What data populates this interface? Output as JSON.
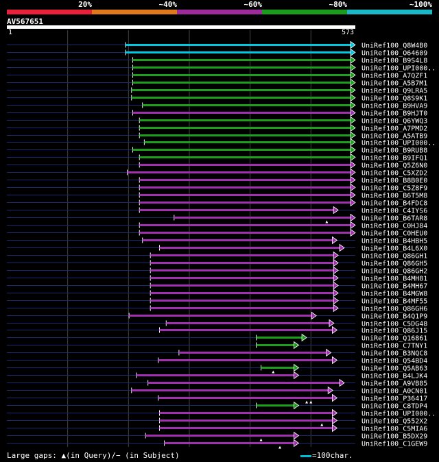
{
  "legend": {
    "labels": [
      "20%",
      "~40%",
      "~60%",
      "~80%",
      "~100%"
    ],
    "colors": [
      "#e8203c",
      "#e0781c",
      "#9c2c9c",
      "#1c9c1c",
      "#1cb8c8"
    ]
  },
  "query": {
    "name": "AV567651",
    "start_label": "1",
    "end_label": "573",
    "length": 573
  },
  "hits": [
    {
      "name": "UniRef100_Q8W4B0",
      "start": 195,
      "end": 573,
      "color": "cyan",
      "gaps": []
    },
    {
      "name": "UniRef100_O64609",
      "start": 195,
      "end": 573,
      "color": "cyan",
      "gaps": []
    },
    {
      "name": "UniRef100_B9S4L8",
      "start": 207,
      "end": 573,
      "color": "green",
      "gaps": []
    },
    {
      "name": "UniRef100_UPI000..",
      "start": 207,
      "end": 573,
      "color": "green",
      "gaps": []
    },
    {
      "name": "UniRef100_A7QZF1",
      "start": 207,
      "end": 573,
      "color": "green",
      "gaps": []
    },
    {
      "name": "UniRef100_A5B7M1",
      "start": 207,
      "end": 573,
      "color": "green",
      "gaps": []
    },
    {
      "name": "UniRef100_Q9LRA5",
      "start": 205,
      "end": 573,
      "color": "green",
      "gaps": []
    },
    {
      "name": "UniRef100_Q8S9K1",
      "start": 205,
      "end": 573,
      "color": "green",
      "gaps": []
    },
    {
      "name": "UniRef100_B9HVA9",
      "start": 223,
      "end": 573,
      "color": "green",
      "gaps": []
    },
    {
      "name": "UniRef100_B9HJT0",
      "start": 207,
      "end": 573,
      "color": "purple",
      "gaps": []
    },
    {
      "name": "UniRef100_Q6YWQ3",
      "start": 218,
      "end": 573,
      "color": "green",
      "gaps": []
    },
    {
      "name": "UniRef100_A7PMD2",
      "start": 218,
      "end": 573,
      "color": "green",
      "gaps": []
    },
    {
      "name": "UniRef100_A5ATB9",
      "start": 218,
      "end": 573,
      "color": "green",
      "gaps": []
    },
    {
      "name": "UniRef100_UPI000..",
      "start": 226,
      "end": 573,
      "color": "green",
      "gaps": []
    },
    {
      "name": "UniRef100_B9RUB8",
      "start": 207,
      "end": 573,
      "color": "green",
      "gaps": []
    },
    {
      "name": "UniRef100_B9IFQ1",
      "start": 218,
      "end": 573,
      "color": "green",
      "gaps": []
    },
    {
      "name": "UniRef100_Q5Z6N0",
      "start": 218,
      "end": 573,
      "color": "purple",
      "gaps": []
    },
    {
      "name": "UniRef100_C5XZD2",
      "start": 198,
      "end": 573,
      "color": "purple",
      "gaps": []
    },
    {
      "name": "UniRef100_B8B0E0",
      "start": 218,
      "end": 573,
      "color": "purple",
      "gaps": []
    },
    {
      "name": "UniRef100_C5Z8F9",
      "start": 218,
      "end": 573,
      "color": "purple",
      "gaps": []
    },
    {
      "name": "UniRef100_B6T5M8",
      "start": 218,
      "end": 573,
      "color": "purple",
      "gaps": []
    },
    {
      "name": "UniRef100_B4FDC8",
      "start": 218,
      "end": 573,
      "color": "purple",
      "gaps": []
    },
    {
      "name": "UniRef100_C4IYS6",
      "start": 218,
      "end": 545,
      "color": "purple",
      "gaps": []
    },
    {
      "name": "UniRef100_B6TAR8",
      "start": 275,
      "end": 573,
      "color": "purple",
      "gaps": [
        526
      ]
    },
    {
      "name": "UniRef100_C0HJ84",
      "start": 218,
      "end": 573,
      "color": "purple",
      "gaps": []
    },
    {
      "name": "UniRef100_C0HEU0",
      "start": 218,
      "end": 573,
      "color": "purple",
      "gaps": []
    },
    {
      "name": "UniRef100_B4HBH5",
      "start": 223,
      "end": 543,
      "color": "purple",
      "gaps": []
    },
    {
      "name": "UniRef100_B4L6X0",
      "start": 251,
      "end": 555,
      "color": "purple",
      "gaps": []
    },
    {
      "name": "UniRef100_Q86GH1",
      "start": 236,
      "end": 545,
      "color": "purple",
      "gaps": []
    },
    {
      "name": "UniRef100_Q86GH5",
      "start": 236,
      "end": 545,
      "color": "purple",
      "gaps": []
    },
    {
      "name": "UniRef100_Q86GH2",
      "start": 236,
      "end": 545,
      "color": "purple",
      "gaps": []
    },
    {
      "name": "UniRef100_B4MH81",
      "start": 236,
      "end": 545,
      "color": "purple",
      "gaps": []
    },
    {
      "name": "UniRef100_B4MH67",
      "start": 236,
      "end": 545,
      "color": "purple",
      "gaps": []
    },
    {
      "name": "UniRef100_B4MGW8",
      "start": 236,
      "end": 545,
      "color": "purple",
      "gaps": []
    },
    {
      "name": "UniRef100_B4MF55",
      "start": 236,
      "end": 545,
      "color": "purple",
      "gaps": []
    },
    {
      "name": "UniRef100_Q86GH6",
      "start": 236,
      "end": 545,
      "color": "purple",
      "gaps": []
    },
    {
      "name": "UniRef100_B4Q1P9",
      "start": 201,
      "end": 509,
      "color": "purple",
      "gaps": []
    },
    {
      "name": "UniRef100_C5DG48",
      "start": 262,
      "end": 538,
      "color": "purple",
      "gaps": []
    },
    {
      "name": "UniRef100_Q86J15",
      "start": 251,
      "end": 543,
      "color": "purple",
      "gaps": []
    },
    {
      "name": "UniRef100_Q16861",
      "start": 410,
      "end": 493,
      "color": "green",
      "gaps": []
    },
    {
      "name": "UniRef100_C7TNY1",
      "start": 410,
      "end": 480,
      "color": "green",
      "gaps": []
    },
    {
      "name": "UniRef100_B3NQC8",
      "start": 283,
      "end": 533,
      "color": "purple",
      "gaps": []
    },
    {
      "name": "UniRef100_Q54BD4",
      "start": 249,
      "end": 543,
      "color": "purple",
      "gaps": []
    },
    {
      "name": "UniRef100_Q5AB63",
      "start": 418,
      "end": 480,
      "color": "green",
      "gaps": [
        438
      ]
    },
    {
      "name": "UniRef100_B4LJK4",
      "start": 213,
      "end": 480,
      "color": "purple",
      "gaps": []
    },
    {
      "name": "UniRef100_A9VB85",
      "start": 232,
      "end": 555,
      "color": "purple",
      "gaps": []
    },
    {
      "name": "UniRef100_A0CN01",
      "start": 205,
      "end": 536,
      "color": "purple",
      "gaps": []
    },
    {
      "name": "UniRef100_P36417",
      "start": 249,
      "end": 543,
      "color": "purple",
      "gaps": [
        493,
        500
      ]
    },
    {
      "name": "UniRef100_C8TDP4",
      "start": 410,
      "end": 480,
      "color": "green",
      "gaps": []
    },
    {
      "name": "UniRef100_UPI000..",
      "start": 251,
      "end": 543,
      "color": "purple",
      "gaps": []
    },
    {
      "name": "UniRef100_Q552X2",
      "start": 251,
      "end": 543,
      "color": "purple",
      "gaps": [
        518
      ]
    },
    {
      "name": "UniRef100_C5MIA6",
      "start": 251,
      "end": 543,
      "color": "purple",
      "gaps": []
    },
    {
      "name": "UniRef100_B5DX29",
      "start": 228,
      "end": 480,
      "color": "purple",
      "gaps": [
        418
      ]
    },
    {
      "name": "UniRef100_C1GEW9",
      "start": 259,
      "end": 480,
      "color": "purple",
      "gaps": [
        449
      ]
    }
  ],
  "footer": {
    "gaps_text": "Large gaps: ▲(in Query)/− (in Subject)",
    "scale_text": "=100char."
  }
}
